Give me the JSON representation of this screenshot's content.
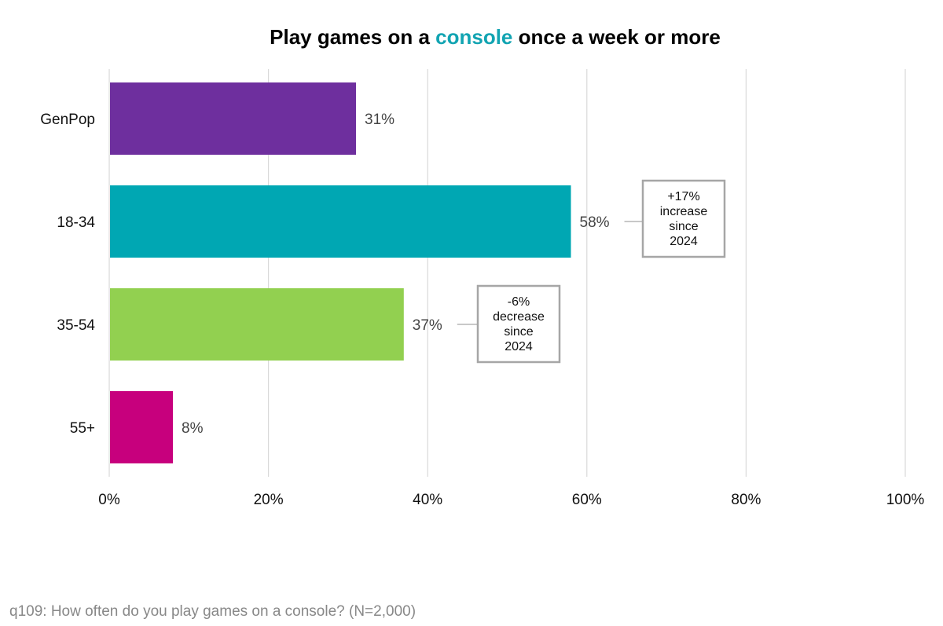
{
  "chart_data": {
    "type": "bar",
    "orientation": "horizontal",
    "title_parts": [
      "Play games on a ",
      "console",
      " once a week or more"
    ],
    "title_highlight_color": "#12a4b2",
    "categories": [
      "GenPop",
      "18-34",
      "35-54",
      "55+"
    ],
    "values": [
      31,
      58,
      37,
      8
    ],
    "value_labels": [
      "31%",
      "58%",
      "37%",
      "8%"
    ],
    "bar_colors": [
      "#6e2f9e",
      "#00a7b3",
      "#92d050",
      "#c7007d"
    ],
    "xlim": [
      0,
      100
    ],
    "x_ticks": [
      0,
      20,
      40,
      60,
      80,
      100
    ],
    "x_tick_labels": [
      "0%",
      "20%",
      "40%",
      "60%",
      "80%",
      "100%"
    ],
    "grid": true,
    "annotations": [
      {
        "category": "18-34",
        "lines": [
          "+17%",
          "increase",
          "since",
          "2024"
        ]
      },
      {
        "category": "35-54",
        "lines": [
          "-6%",
          "decrease",
          "since",
          "2024"
        ]
      }
    ]
  },
  "footnote": "q109: How often do you play games on a console? (N=2,000)"
}
